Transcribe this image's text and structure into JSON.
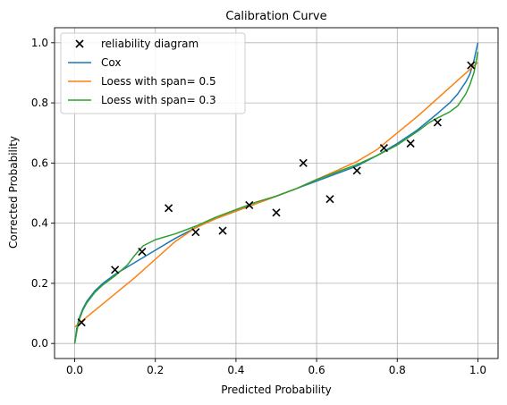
{
  "chart_data": {
    "type": "line",
    "title": "Calibration Curve",
    "xlabel": "Predicted Probability",
    "ylabel": "Corrected Probability",
    "xlim": [
      -0.05,
      1.05
    ],
    "ylim": [
      -0.05,
      1.05
    ],
    "xticks": [
      0.0,
      0.2,
      0.4,
      0.6,
      0.8,
      1.0
    ],
    "yticks": [
      0.0,
      0.2,
      0.4,
      0.6,
      0.8,
      1.0
    ],
    "xtick_labels": [
      "0.0",
      "0.2",
      "0.4",
      "0.6",
      "0.8",
      "1.0"
    ],
    "ytick_labels": [
      "0.0",
      "0.2",
      "0.4",
      "0.6",
      "0.8",
      "1.0"
    ],
    "grid": true,
    "legend_position": "top-left",
    "scatter": {
      "name": "reliability diagram",
      "marker": "x",
      "color": "#000000",
      "x": [
        0.017,
        0.1,
        0.167,
        0.233,
        0.3,
        0.367,
        0.433,
        0.5,
        0.567,
        0.633,
        0.7,
        0.767,
        0.833,
        0.9,
        0.983
      ],
      "y": [
        0.07,
        0.245,
        0.305,
        0.45,
        0.37,
        0.375,
        0.46,
        0.435,
        0.6,
        0.48,
        0.575,
        0.65,
        0.665,
        0.735,
        0.925
      ]
    },
    "series": [
      {
        "name": "Cox",
        "color": "#1f77b4",
        "x": [
          0.0,
          0.005,
          0.01,
          0.02,
          0.03,
          0.05,
          0.07,
          0.1,
          0.15,
          0.2,
          0.25,
          0.3,
          0.35,
          0.4,
          0.45,
          0.5,
          0.55,
          0.6,
          0.65,
          0.7,
          0.75,
          0.8,
          0.85,
          0.9,
          0.93,
          0.95,
          0.97,
          0.98,
          0.99,
          0.995,
          1.0
        ],
        "y": [
          0.0,
          0.05,
          0.08,
          0.115,
          0.14,
          0.175,
          0.2,
          0.23,
          0.27,
          0.31,
          0.35,
          0.385,
          0.415,
          0.44,
          0.465,
          0.49,
          0.515,
          0.54,
          0.565,
          0.59,
          0.625,
          0.665,
          0.71,
          0.765,
          0.8,
          0.83,
          0.87,
          0.895,
          0.94,
          0.97,
          1.0
        ]
      },
      {
        "name": "Loess with span= 0.5",
        "color": "#ff7f0e",
        "x": [
          0.0,
          0.05,
          0.1,
          0.15,
          0.2,
          0.25,
          0.3,
          0.35,
          0.4,
          0.45,
          0.5,
          0.55,
          0.6,
          0.65,
          0.7,
          0.75,
          0.8,
          0.85,
          0.9,
          0.95,
          1.0
        ],
        "y": [
          0.055,
          0.11,
          0.165,
          0.22,
          0.28,
          0.34,
          0.385,
          0.415,
          0.44,
          0.465,
          0.49,
          0.515,
          0.545,
          0.575,
          0.605,
          0.645,
          0.7,
          0.755,
          0.815,
          0.875,
          0.935
        ]
      },
      {
        "name": "Loess with span= 0.3",
        "color": "#2ca02c",
        "x": [
          0.0,
          0.01,
          0.02,
          0.03,
          0.05,
          0.07,
          0.1,
          0.13,
          0.15,
          0.17,
          0.2,
          0.25,
          0.3,
          0.35,
          0.4,
          0.45,
          0.5,
          0.55,
          0.6,
          0.65,
          0.7,
          0.75,
          0.8,
          0.85,
          0.88,
          0.9,
          0.93,
          0.95,
          0.97,
          0.98,
          0.99,
          1.0
        ],
        "y": [
          0.0,
          0.075,
          0.11,
          0.135,
          0.17,
          0.195,
          0.225,
          0.26,
          0.295,
          0.325,
          0.345,
          0.365,
          0.39,
          0.42,
          0.445,
          0.47,
          0.49,
          0.515,
          0.545,
          0.57,
          0.595,
          0.625,
          0.66,
          0.705,
          0.735,
          0.75,
          0.77,
          0.79,
          0.83,
          0.86,
          0.9,
          0.97
        ]
      }
    ]
  }
}
